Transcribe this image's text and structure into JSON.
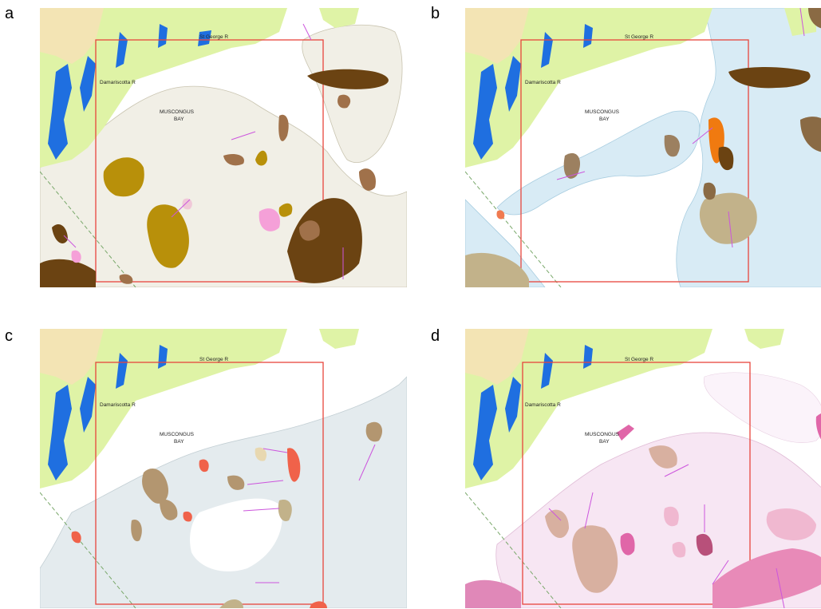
{
  "figure": {
    "panels": [
      {
        "letter": "a",
        "scheme": "brown",
        "area_fill": "#f1efe6",
        "area_stroke": "#c9c4b0"
      },
      {
        "letter": "b",
        "scheme": "blue",
        "area_fill": "#d8ebf5",
        "area_stroke": "#a8cde0"
      },
      {
        "letter": "c",
        "scheme": "gray",
        "area_fill": "#e4ebee",
        "area_stroke": "#c3cfd4"
      },
      {
        "letter": "d",
        "scheme": "pink",
        "area_fill": "#f7e6f3",
        "area_stroke": "#e0bcd6"
      }
    ],
    "place_labels": {
      "st_george": "St George R",
      "damariscotta": "Damariscotta R",
      "bay_line1": "MUSCONGUS",
      "bay_line2": "BAY"
    },
    "colors": {
      "land": "#dff3a6",
      "land_peninsula": "#f3e4b4",
      "water": "#1f6fe0",
      "study_box": "#e8453c",
      "arrow": "#cc55dd",
      "boundary_dash": "#79a86a"
    }
  }
}
